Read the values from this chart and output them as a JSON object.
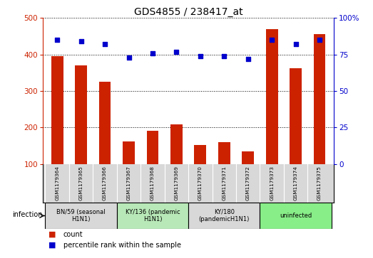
{
  "title": "GDS4855 / 238417_at",
  "samples": [
    "GSM1179364",
    "GSM1179365",
    "GSM1179366",
    "GSM1179367",
    "GSM1179368",
    "GSM1179369",
    "GSM1179370",
    "GSM1179371",
    "GSM1179372",
    "GSM1179373",
    "GSM1179374",
    "GSM1179375"
  ],
  "counts": [
    395,
    370,
    325,
    162,
    190,
    208,
    151,
    159,
    135,
    470,
    363,
    455
  ],
  "percentiles": [
    85,
    84,
    82,
    73,
    76,
    77,
    74,
    74,
    72,
    85,
    82,
    85
  ],
  "ylim_left": [
    100,
    500
  ],
  "ylim_right": [
    0,
    100
  ],
  "yticks_left": [
    100,
    200,
    300,
    400,
    500
  ],
  "yticks_right": [
    0,
    25,
    50,
    75,
    100
  ],
  "groups": [
    {
      "label": "BN/59 (seasonal\nH1N1)",
      "start": 0,
      "end": 3,
      "color": "#d8d8d8"
    },
    {
      "label": "KY/136 (pandemic\nH1N1)",
      "start": 3,
      "end": 6,
      "color": "#b8e8b8"
    },
    {
      "label": "KY/180\n(pandemicH1N1)",
      "start": 6,
      "end": 9,
      "color": "#d8d8d8"
    },
    {
      "label": "uninfected",
      "start": 9,
      "end": 12,
      "color": "#88ee88"
    }
  ],
  "bar_color": "#cc2200",
  "dot_color": "#0000cc",
  "grid_color": "#000000",
  "bg_color": "#ffffff",
  "left_axis_color": "#cc2200",
  "right_axis_color": "#0000cc",
  "bar_width": 0.5,
  "legend_count_label": "count",
  "legend_pct_label": "percentile rank within the sample",
  "infection_label": "infection"
}
